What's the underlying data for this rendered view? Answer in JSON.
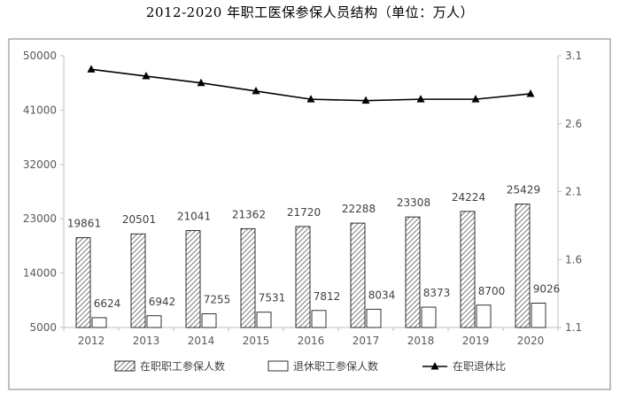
{
  "chart_data": {
    "type": "bar",
    "title": "2012-2020 年职工医保参保人员结构（单位：万人）",
    "categories": [
      "2012",
      "2013",
      "2014",
      "2015",
      "2016",
      "2017",
      "2018",
      "2019",
      "2020"
    ],
    "series": [
      {
        "name": "在职职工参保人数",
        "kind": "bar",
        "axis": "left",
        "pattern": "hatched",
        "values": [
          19861,
          20501,
          21041,
          21362,
          21720,
          22288,
          23308,
          24224,
          25429
        ]
      },
      {
        "name": "退休职工参保人数",
        "kind": "bar",
        "axis": "left",
        "pattern": "white",
        "values": [
          6624,
          6942,
          7255,
          7531,
          7812,
          8034,
          8373,
          8700,
          9026
        ]
      },
      {
        "name": "在职退休比",
        "kind": "line",
        "axis": "right",
        "marker": "triangle",
        "values": [
          3.0,
          2.95,
          2.9,
          2.84,
          2.78,
          2.77,
          2.78,
          2.78,
          2.82
        ]
      }
    ],
    "y_left": {
      "ticks": [
        5000,
        14000,
        23000,
        32000,
        41000,
        50000
      ],
      "ylim": [
        5000,
        50000
      ]
    },
    "y_right": {
      "ticks": [
        1.1,
        1.6,
        2.1,
        2.6,
        3.1
      ],
      "ylim": [
        1.1,
        3.1
      ]
    },
    "grid": false,
    "legend_position": "bottom",
    "colors": {
      "bar_outline": "#000000",
      "hatch": "#595959",
      "line": "#000000",
      "axis": "#bfbfbf",
      "frame": "#7f7f7f"
    }
  }
}
